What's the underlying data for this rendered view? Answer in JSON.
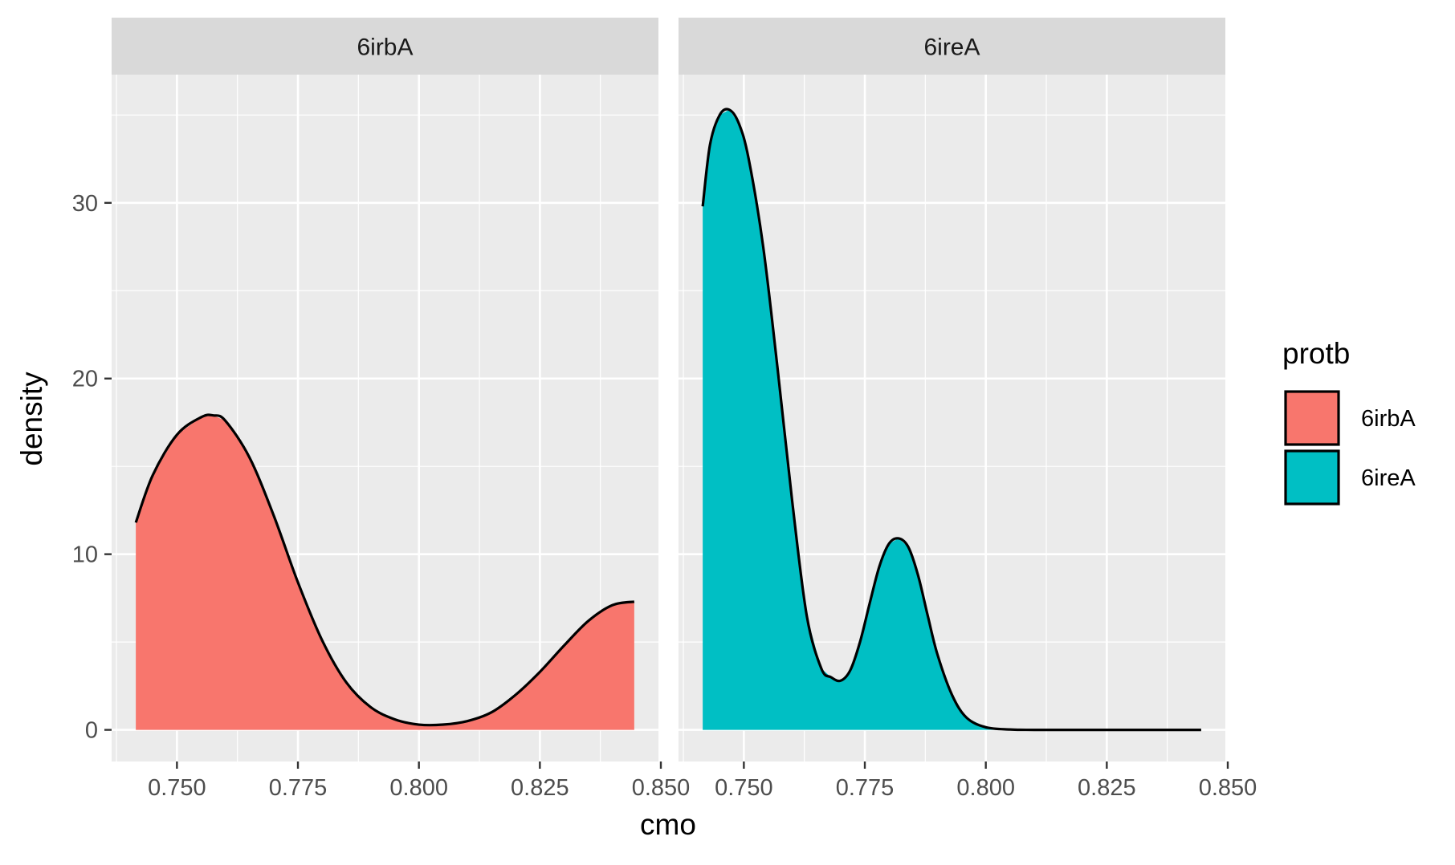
{
  "chart_data": {
    "type": "area",
    "subtype": "density",
    "facets": [
      "6irbA",
      "6ireA"
    ],
    "xlabel": "cmo",
    "ylabel": "density",
    "xlim": [
      0.7365,
      0.8495
    ],
    "ylim": [
      -1.8,
      37.3
    ],
    "x_ticks": [
      0.75,
      0.775,
      0.8,
      0.825,
      0.85
    ],
    "x_tick_labels": [
      "0.750",
      "0.775",
      "0.800",
      "0.825",
      "0.850"
    ],
    "y_ticks": [
      0,
      10,
      20,
      30
    ],
    "y_tick_labels": [
      "0",
      "10",
      "20",
      "30"
    ],
    "grid": true,
    "legend": {
      "title": "protb",
      "position": "right",
      "entries": [
        {
          "label": "6irbA",
          "color": "#F8766D"
        },
        {
          "label": "6ireA",
          "color": "#00BFC4"
        }
      ]
    },
    "series": [
      {
        "name": "6irbA",
        "facet": "6irbA",
        "color": "#F8766D",
        "x": [
          0.7415,
          0.745,
          0.75,
          0.755,
          0.7575,
          0.76,
          0.765,
          0.77,
          0.775,
          0.78,
          0.785,
          0.79,
          0.795,
          0.8,
          0.805,
          0.81,
          0.815,
          0.82,
          0.825,
          0.83,
          0.835,
          0.84,
          0.8445
        ],
        "values": [
          11.8,
          14.5,
          16.8,
          17.8,
          17.9,
          17.6,
          15.5,
          12.2,
          8.4,
          5.1,
          2.7,
          1.3,
          0.6,
          0.3,
          0.3,
          0.5,
          1.0,
          2.0,
          3.3,
          4.8,
          6.2,
          7.1,
          7.3
        ]
      },
      {
        "name": "6ireA",
        "facet": "6ireA",
        "color": "#00BFC4",
        "x": [
          0.7415,
          0.743,
          0.745,
          0.747,
          0.749,
          0.751,
          0.754,
          0.757,
          0.76,
          0.763,
          0.766,
          0.768,
          0.77,
          0.772,
          0.774,
          0.776,
          0.778,
          0.78,
          0.782,
          0.784,
          0.786,
          0.788,
          0.79,
          0.793,
          0.796,
          0.8,
          0.805,
          0.81,
          0.82,
          0.83,
          0.84,
          0.8445
        ],
        "values": [
          29.8,
          33.3,
          35.0,
          35.3,
          34.5,
          32.5,
          27.5,
          20.5,
          13.0,
          6.5,
          3.5,
          3.0,
          2.8,
          3.4,
          5.0,
          7.2,
          9.3,
          10.6,
          10.9,
          10.4,
          8.8,
          6.5,
          4.3,
          2.0,
          0.7,
          0.15,
          0.02,
          0.0,
          0.0,
          0.0,
          0.0,
          0.0
        ]
      }
    ]
  }
}
